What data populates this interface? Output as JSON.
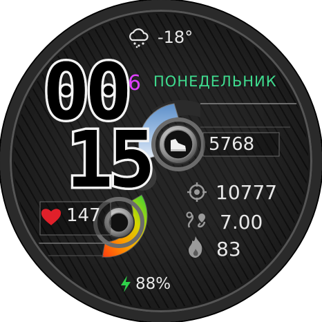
{
  "weather": {
    "icon": "cloud-snow-icon",
    "temperature": "-18°"
  },
  "time": {
    "hours": "00",
    "minutes": "15"
  },
  "date": {
    "day": "6",
    "weekday": "ПОНЕДЕЛЬНИК"
  },
  "steps": {
    "icon": "shoe-icon",
    "value": "5768"
  },
  "calories_target": {
    "icon": "target-icon",
    "value": "10777"
  },
  "distance": {
    "icon": "route-icon",
    "value": "7.00"
  },
  "burn": {
    "icon": "flame-icon",
    "value": "83"
  },
  "heart": {
    "icon": "heart-icon",
    "value": "147"
  },
  "battery": {
    "icon": "bolt-icon",
    "value": "88%"
  },
  "colors": {
    "accent_green": "#3fdc8f",
    "day_magenta": "#e040ff",
    "heart_red": "#e0202a",
    "bolt_green": "#2fd14a"
  }
}
